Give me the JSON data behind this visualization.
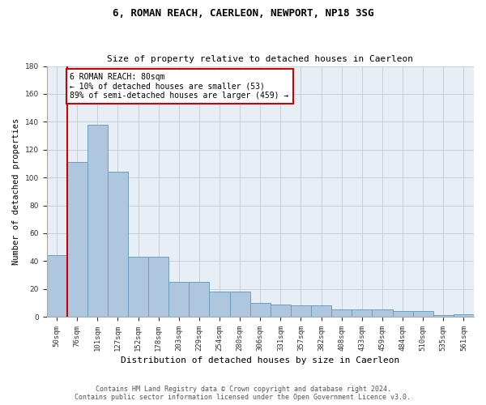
{
  "title": "6, ROMAN REACH, CAERLEON, NEWPORT, NP18 3SG",
  "subtitle": "Size of property relative to detached houses in Caerleon",
  "xlabel": "Distribution of detached houses by size in Caerleon",
  "ylabel": "Number of detached properties",
  "categories": [
    "50sqm",
    "76sqm",
    "101sqm",
    "127sqm",
    "152sqm",
    "178sqm",
    "203sqm",
    "229sqm",
    "254sqm",
    "280sqm",
    "306sqm",
    "331sqm",
    "357sqm",
    "382sqm",
    "408sqm",
    "433sqm",
    "459sqm",
    "484sqm",
    "510sqm",
    "535sqm",
    "561sqm"
  ],
  "values": [
    44,
    111,
    138,
    104,
    43,
    43,
    25,
    25,
    18,
    18,
    10,
    9,
    8,
    8,
    5,
    5,
    5,
    4,
    4,
    1,
    2
  ],
  "bar_color": "#aec6de",
  "bar_edge_color": "#6a9fc0",
  "highlight_bar_index": 1,
  "highlight_color": "#cc0000",
  "annotation_text": "6 ROMAN REACH: 80sqm\n← 10% of detached houses are smaller (53)\n89% of semi-detached houses are larger (459) →",
  "annotation_box_color": "#ffffff",
  "annotation_box_edge": "#cc0000",
  "ylim": [
    0,
    180
  ],
  "yticks": [
    0,
    20,
    40,
    60,
    80,
    100,
    120,
    140,
    160,
    180
  ],
  "background_color": "#ffffff",
  "plot_bg_color": "#e8eef5",
  "grid_color": "#c0ccd8",
  "footer_line1": "Contains HM Land Registry data © Crown copyright and database right 2024.",
  "footer_line2": "Contains public sector information licensed under the Open Government Licence v3.0."
}
